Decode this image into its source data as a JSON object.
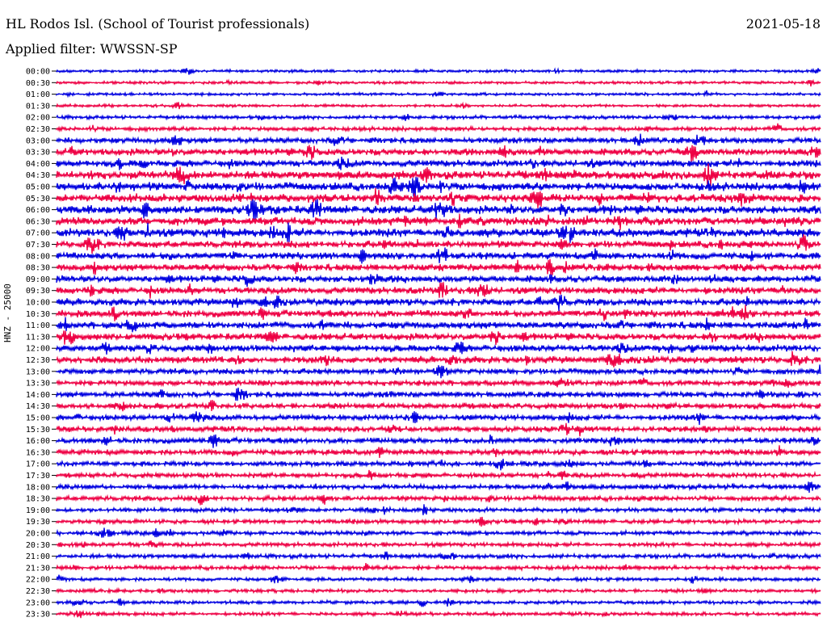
{
  "header": {
    "station": "HL Rodos Isl. (School of Tourist professionals)",
    "date": "2021-05-18",
    "filter": "Applied filter: WWSSN-SP"
  },
  "chart_data": {
    "type": "line",
    "title": "HL Rodos Isl. (School of Tourist professionals)",
    "ylabel": "HNZ - 25000",
    "trace_colors": [
      "#0000e0",
      "#ee0044"
    ],
    "rows": [
      {
        "label": "00:00",
        "color": "#0000e0",
        "amp": 2
      },
      {
        "label": "00:30",
        "color": "#ee0044",
        "amp": 2
      },
      {
        "label": "01:00",
        "color": "#0000e0",
        "amp": 2
      },
      {
        "label": "01:30",
        "color": "#ee0044",
        "amp": 2
      },
      {
        "label": "02:00",
        "color": "#0000e0",
        "amp": 2.5
      },
      {
        "label": "02:30",
        "color": "#ee0044",
        "amp": 3
      },
      {
        "label": "03:00",
        "color": "#0000e0",
        "amp": 4
      },
      {
        "label": "03:30",
        "color": "#ee0044",
        "amp": 5
      },
      {
        "label": "04:00",
        "color": "#0000e0",
        "amp": 5
      },
      {
        "label": "04:30",
        "color": "#ee0044",
        "amp": 6
      },
      {
        "label": "05:00",
        "color": "#0000e0",
        "amp": 6
      },
      {
        "label": "05:30",
        "color": "#ee0044",
        "amp": 6
      },
      {
        "label": "06:00",
        "color": "#0000e0",
        "amp": 6
      },
      {
        "label": "06:30",
        "color": "#ee0044",
        "amp": 6
      },
      {
        "label": "07:00",
        "color": "#0000e0",
        "amp": 6
      },
      {
        "label": "07:30",
        "color": "#ee0044",
        "amp": 5
      },
      {
        "label": "08:00",
        "color": "#0000e0",
        "amp": 5
      },
      {
        "label": "08:30",
        "color": "#ee0044",
        "amp": 5
      },
      {
        "label": "09:00",
        "color": "#0000e0",
        "amp": 5
      },
      {
        "label": "09:30",
        "color": "#ee0044",
        "amp": 5
      },
      {
        "label": "10:00",
        "color": "#0000e0",
        "amp": 5
      },
      {
        "label": "10:30",
        "color": "#ee0044",
        "amp": 5
      },
      {
        "label": "11:00",
        "color": "#0000e0",
        "amp": 5
      },
      {
        "label": "11:30",
        "color": "#ee0044",
        "amp": 5
      },
      {
        "label": "12:00",
        "color": "#0000e0",
        "amp": 5
      },
      {
        "label": "12:30",
        "color": "#ee0044",
        "amp": 5
      },
      {
        "label": "13:00",
        "color": "#0000e0",
        "amp": 4
      },
      {
        "label": "13:30",
        "color": "#ee0044",
        "amp": 4
      },
      {
        "label": "14:00",
        "color": "#0000e0",
        "amp": 4
      },
      {
        "label": "14:30",
        "color": "#ee0044",
        "amp": 4
      },
      {
        "label": "15:00",
        "color": "#0000e0",
        "amp": 4
      },
      {
        "label": "15:30",
        "color": "#ee0044",
        "amp": 4
      },
      {
        "label": "16:00",
        "color": "#0000e0",
        "amp": 4
      },
      {
        "label": "16:30",
        "color": "#ee0044",
        "amp": 4
      },
      {
        "label": "17:00",
        "color": "#0000e0",
        "amp": 3.5
      },
      {
        "label": "17:30",
        "color": "#ee0044",
        "amp": 3.5
      },
      {
        "label": "18:00",
        "color": "#0000e0",
        "amp": 3.5
      },
      {
        "label": "18:30",
        "color": "#ee0044",
        "amp": 3.5
      },
      {
        "label": "19:00",
        "color": "#0000e0",
        "amp": 3
      },
      {
        "label": "19:30",
        "color": "#ee0044",
        "amp": 3
      },
      {
        "label": "20:00",
        "color": "#0000e0",
        "amp": 3
      },
      {
        "label": "20:30",
        "color": "#ee0044",
        "amp": 3
      },
      {
        "label": "21:00",
        "color": "#0000e0",
        "amp": 3
      },
      {
        "label": "21:30",
        "color": "#ee0044",
        "amp": 3
      },
      {
        "label": "22:00",
        "color": "#0000e0",
        "amp": 2.5
      },
      {
        "label": "22:30",
        "color": "#ee0044",
        "amp": 2.5
      },
      {
        "label": "23:00",
        "color": "#0000e0",
        "amp": 2.5
      },
      {
        "label": "23:30",
        "color": "#ee0044",
        "amp": 2.5
      }
    ]
  }
}
